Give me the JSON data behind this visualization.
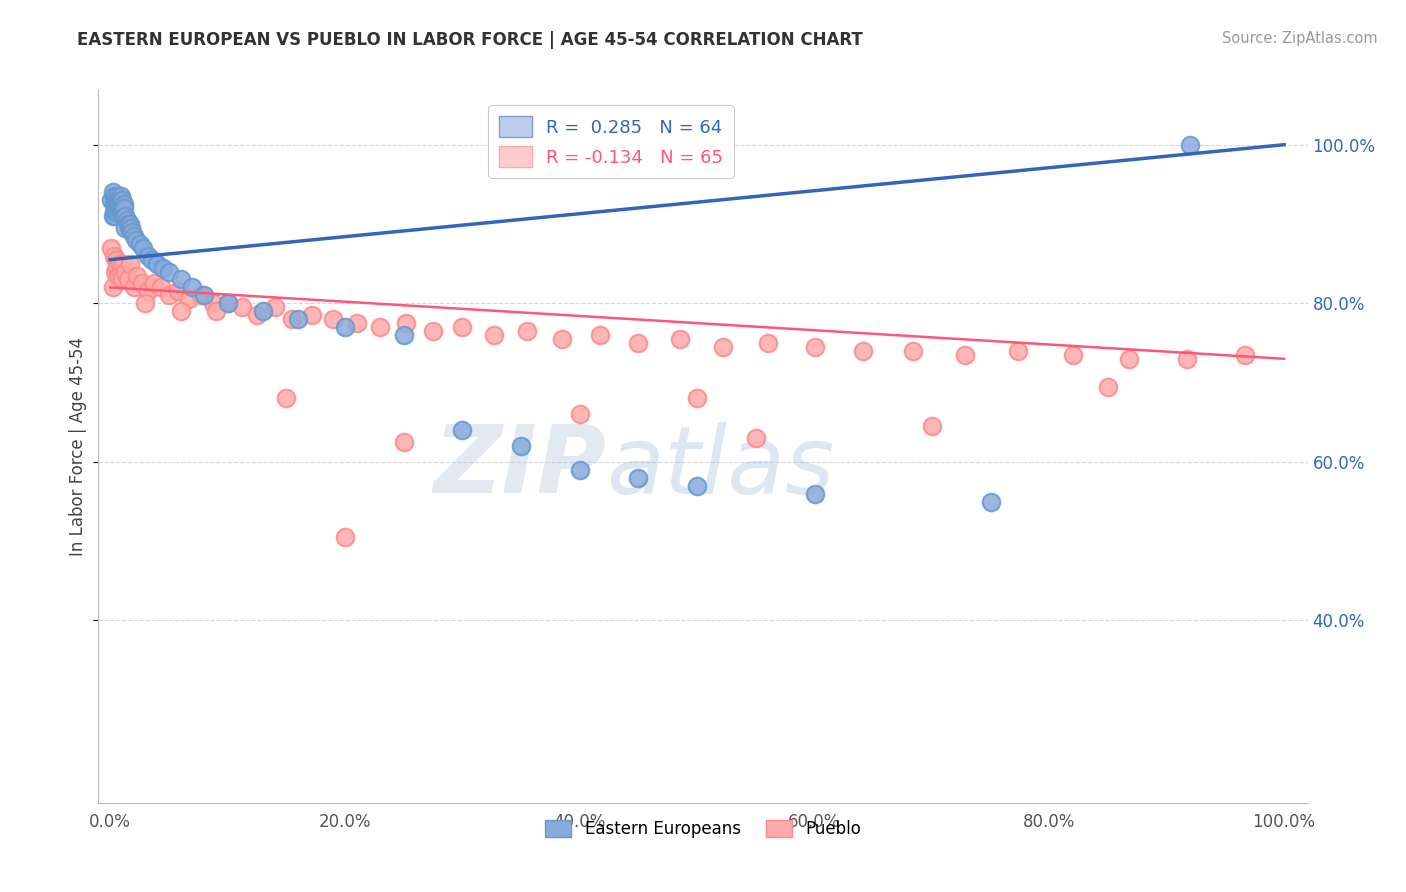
{
  "title": "EASTERN EUROPEAN VS PUEBLO IN LABOR FORCE | AGE 45-54 CORRELATION CHART",
  "source": "Source: ZipAtlas.com",
  "ylabel": "In Labor Force | Age 45-54",
  "xlim": [
    -0.01,
    1.02
  ],
  "ylim": [
    0.17,
    1.07
  ],
  "xticks": [
    0.0,
    0.2,
    0.4,
    0.6,
    0.8,
    1.0
  ],
  "yticks": [
    0.4,
    0.6,
    0.8,
    1.0
  ],
  "ytick_labels_right": [
    "40.0%",
    "60.0%",
    "80.0%",
    "100.0%"
  ],
  "xtick_labels": [
    "0.0%",
    "20.0%",
    "40.0%",
    "60.0%",
    "80.0%",
    "100.0%"
  ],
  "blue_r": 0.285,
  "blue_n": 64,
  "pink_r": -0.134,
  "pink_n": 65,
  "blue_color": "#88AADD",
  "pink_color": "#FFAAAA",
  "blue_edge_color": "#6699CC",
  "pink_edge_color": "#FF8888",
  "blue_line_color": "#3366BB",
  "pink_line_color": "#FF5577",
  "blue_line_start_y": 0.855,
  "blue_line_end_y": 1.0,
  "pink_line_start_y": 0.82,
  "pink_line_end_y": 0.73,
  "watermark_zip": "ZIP",
  "watermark_atlas": "atlas",
  "legend_label_blue": "Eastern Europeans",
  "legend_label_pink": "Pueblo",
  "blue_x": [
    0.001,
    0.002,
    0.002,
    0.003,
    0.003,
    0.003,
    0.004,
    0.004,
    0.004,
    0.005,
    0.005,
    0.005,
    0.006,
    0.006,
    0.006,
    0.007,
    0.007,
    0.007,
    0.007,
    0.008,
    0.008,
    0.008,
    0.009,
    0.009,
    0.01,
    0.01,
    0.01,
    0.011,
    0.011,
    0.012,
    0.012,
    0.013,
    0.013,
    0.014,
    0.015,
    0.016,
    0.017,
    0.018,
    0.019,
    0.02,
    0.022,
    0.025,
    0.028,
    0.032,
    0.036,
    0.04,
    0.045,
    0.05,
    0.06,
    0.07,
    0.08,
    0.1,
    0.13,
    0.16,
    0.2,
    0.25,
    0.3,
    0.35,
    0.4,
    0.45,
    0.5,
    0.6,
    0.75,
    0.92
  ],
  "blue_y": [
    0.93,
    0.94,
    0.91,
    0.935,
    0.925,
    0.915,
    0.93,
    0.92,
    0.91,
    0.93,
    0.92,
    0.915,
    0.925,
    0.935,
    0.92,
    0.93,
    0.925,
    0.915,
    0.92,
    0.93,
    0.925,
    0.92,
    0.915,
    0.935,
    0.925,
    0.93,
    0.92,
    0.915,
    0.91,
    0.925,
    0.92,
    0.91,
    0.895,
    0.905,
    0.9,
    0.895,
    0.9,
    0.895,
    0.89,
    0.885,
    0.88,
    0.875,
    0.87,
    0.86,
    0.855,
    0.85,
    0.845,
    0.84,
    0.83,
    0.82,
    0.81,
    0.8,
    0.79,
    0.78,
    0.77,
    0.76,
    0.64,
    0.62,
    0.59,
    0.58,
    0.57,
    0.56,
    0.55,
    1.0
  ],
  "pink_x": [
    0.001,
    0.002,
    0.003,
    0.004,
    0.005,
    0.006,
    0.007,
    0.008,
    0.009,
    0.01,
    0.011,
    0.013,
    0.015,
    0.017,
    0.02,
    0.023,
    0.027,
    0.032,
    0.037,
    0.043,
    0.05,
    0.058,
    0.067,
    0.077,
    0.088,
    0.1,
    0.112,
    0.125,
    0.14,
    0.155,
    0.172,
    0.19,
    0.21,
    0.23,
    0.252,
    0.275,
    0.3,
    0.327,
    0.355,
    0.385,
    0.417,
    0.45,
    0.485,
    0.522,
    0.56,
    0.6,
    0.641,
    0.684,
    0.728,
    0.773,
    0.82,
    0.868,
    0.917,
    0.967,
    0.03,
    0.06,
    0.09,
    0.15,
    0.25,
    0.4,
    0.55,
    0.7,
    0.85,
    0.2,
    0.5
  ],
  "pink_y": [
    0.87,
    0.82,
    0.86,
    0.84,
    0.855,
    0.845,
    0.835,
    0.85,
    0.84,
    0.83,
    0.85,
    0.84,
    0.83,
    0.85,
    0.82,
    0.835,
    0.825,
    0.815,
    0.825,
    0.82,
    0.81,
    0.815,
    0.805,
    0.81,
    0.8,
    0.8,
    0.795,
    0.785,
    0.795,
    0.78,
    0.785,
    0.78,
    0.775,
    0.77,
    0.775,
    0.765,
    0.77,
    0.76,
    0.765,
    0.755,
    0.76,
    0.75,
    0.755,
    0.745,
    0.75,
    0.745,
    0.74,
    0.74,
    0.735,
    0.74,
    0.735,
    0.73,
    0.73,
    0.735,
    0.8,
    0.79,
    0.79,
    0.68,
    0.625,
    0.66,
    0.63,
    0.645,
    0.695,
    0.505,
    0.68
  ]
}
